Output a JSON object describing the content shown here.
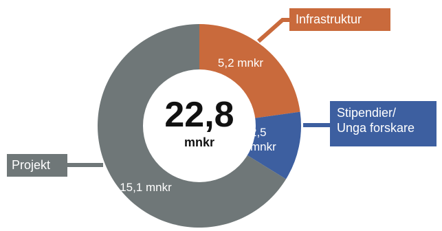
{
  "chart_data": {
    "type": "pie",
    "donut": true,
    "center_value": "22,8",
    "center_unit": "mnkr",
    "slices": [
      {
        "category": "Infrastruktur",
        "value": 5.2,
        "value_label": "5,2 mnkr",
        "color": "#c96a3c"
      },
      {
        "category": "Stipendier/ Unga forskare",
        "value": 2.5,
        "value_label_line1": "2,5",
        "value_label_line2": "mnkr",
        "color": "#3d5fa0"
      },
      {
        "category": "Projekt",
        "value": 15.1,
        "value_label": "15,1 mnkr",
        "color": "#6f7778"
      }
    ],
    "legend_lines": {
      "stipendier_line1": "Stipendier/",
      "stipendier_line2": "Unga forskare"
    }
  }
}
